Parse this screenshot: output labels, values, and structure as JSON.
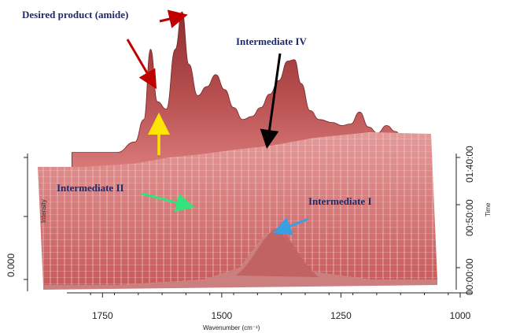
{
  "chart_data": {
    "type": "area",
    "view": "3D waterfall surface (in-situ FTIR spectra over time)",
    "xlabel": "Wavenumber (cm⁻¹)",
    "ylabel": "Intensity",
    "zlabel": "Time",
    "x_ticks": [
      "1750",
      "1500",
      "1250",
      "1000"
    ],
    "y_ticks": [
      "0.000"
    ],
    "z_ticks": [
      "00:00:00",
      "00:50:00",
      "01:40:00"
    ],
    "x_reversed": true,
    "xlim": [
      1820,
      980
    ],
    "series": [
      {
        "x": [
          1800,
          1750,
          1700,
          1660,
          1640,
          1625,
          1610,
          1590,
          1570,
          1555,
          1540,
          1520,
          1500,
          1480,
          1460,
          1440,
          1420,
          1400,
          1380,
          1360,
          1340,
          1320,
          1305,
          1290,
          1270,
          1250,
          1220,
          1200,
          1180,
          1160,
          1140,
          1120,
          1100,
          1080,
          1060,
          1040
        ],
        "values": [
          0.06,
          0.06,
          0.06,
          0.13,
          0.28,
          0.75,
          0.4,
          0.35,
          0.75,
          1.0,
          0.65,
          0.44,
          0.5,
          0.58,
          0.48,
          0.36,
          0.28,
          0.3,
          0.36,
          0.45,
          0.54,
          0.67,
          0.68,
          0.52,
          0.34,
          0.28,
          0.26,
          0.24,
          0.25,
          0.33,
          0.23,
          0.19,
          0.24,
          0.2,
          0.12,
          0.1
        ]
      }
    ]
  },
  "annotations": {
    "desired_product": "Desired product (amide)",
    "intermediate_iv": "Intermediate IV",
    "intermediate_ii": "Intermediate II",
    "intermediate_i": "Intermediate I"
  },
  "colors": {
    "surface": "#d96f6f",
    "surface_dark": "#8e2f2f",
    "arrow_red": "#c00000",
    "arrow_yellow": "#ffe600",
    "arrow_green": "#36e07a",
    "arrow_blue": "#3a9fe0",
    "arrow_black": "#000000",
    "annotation_text": "#1f2a6b"
  }
}
